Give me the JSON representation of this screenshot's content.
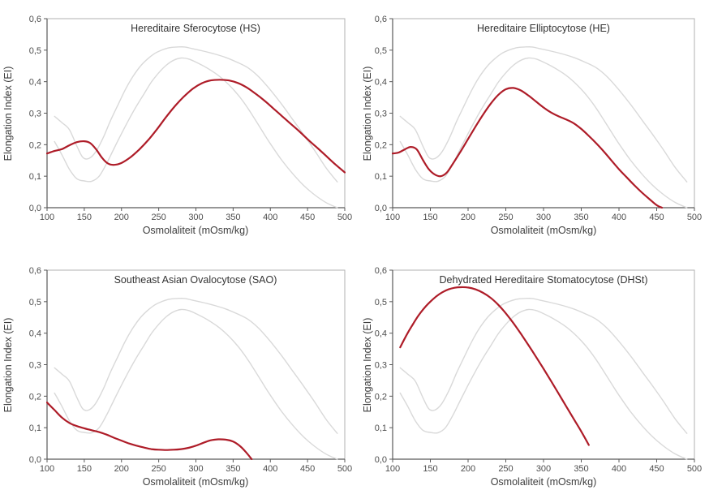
{
  "chart_data": {
    "type": "line",
    "layout": "2x2 grid of panels, shared axes style, no legend, no gridlines",
    "xlabel": "Osmolaliteit (mOsm/kg)",
    "ylabel": "Elongation Index (EI)",
    "xlim": [
      100,
      500
    ],
    "ylim": [
      0.0,
      0.6
    ],
    "xticks": [
      100,
      150,
      200,
      250,
      300,
      350,
      400,
      450,
      500
    ],
    "yticks": [
      0.0,
      0.1,
      0.2,
      0.3,
      0.4,
      0.5,
      0.6
    ],
    "ytick_labels": [
      "0,0",
      "0,1",
      "0,2",
      "0,3",
      "0,4",
      "0,5",
      "0,6"
    ],
    "decimal_separator": ",",
    "grid": false,
    "legend": false,
    "colors": {
      "patient_curve": "#ae1c28",
      "reference_curve": "#d9d9d9",
      "axis": "#595959",
      "border": "#b0b0b0",
      "tick_text": "#4d4d4d",
      "title_text": "#333333"
    },
    "reference_series": [
      {
        "name": "normal-range-upper",
        "x": [
          110,
          120,
          130,
          140,
          148,
          156,
          165,
          175,
          185,
          195,
          205,
          215,
          225,
          235,
          245,
          255,
          265,
          275,
          285,
          295,
          310,
          325,
          340,
          355,
          370,
          385,
          400,
          415,
          430,
          445,
          460,
          475,
          490
        ],
        "y": [
          0.29,
          0.27,
          0.248,
          0.196,
          0.16,
          0.156,
          0.176,
          0.22,
          0.275,
          0.325,
          0.374,
          0.415,
          0.448,
          0.472,
          0.49,
          0.501,
          0.508,
          0.51,
          0.51,
          0.505,
          0.497,
          0.488,
          0.477,
          0.462,
          0.444,
          0.414,
          0.374,
          0.329,
          0.28,
          0.231,
          0.18,
          0.126,
          0.082
        ]
      },
      {
        "name": "normal-range-lower",
        "x": [
          110,
          120,
          130,
          140,
          150,
          160,
          170,
          180,
          190,
          200,
          210,
          220,
          230,
          240,
          250,
          260,
          270,
          280,
          290,
          300,
          310,
          320,
          330,
          340,
          350,
          360,
          370,
          380,
          390,
          400,
          415,
          430,
          445,
          460,
          475,
          490
        ],
        "y": [
          0.21,
          0.168,
          0.122,
          0.092,
          0.085,
          0.084,
          0.1,
          0.14,
          0.188,
          0.235,
          0.28,
          0.322,
          0.36,
          0.398,
          0.428,
          0.452,
          0.468,
          0.475,
          0.472,
          0.462,
          0.45,
          0.436,
          0.42,
          0.4,
          0.376,
          0.348,
          0.315,
          0.278,
          0.24,
          0.203,
          0.152,
          0.108,
          0.07,
          0.04,
          0.016,
          0.0
        ]
      }
    ],
    "panels": [
      {
        "title": "Hereditaire Sferocytose (HS)",
        "patient_series": {
          "name": "patient-curve-hs",
          "x": [
            100,
            110,
            120,
            130,
            140,
            150,
            158,
            166,
            174,
            182,
            190,
            200,
            212,
            224,
            236,
            248,
            260,
            272,
            284,
            296,
            308,
            320,
            332,
            344,
            356,
            368,
            380,
            392,
            404,
            416,
            428,
            440,
            452,
            464,
            476,
            488,
            500
          ],
          "y": [
            0.172,
            0.18,
            0.186,
            0.198,
            0.208,
            0.211,
            0.205,
            0.185,
            0.158,
            0.14,
            0.136,
            0.142,
            0.16,
            0.185,
            0.215,
            0.25,
            0.288,
            0.323,
            0.353,
            0.378,
            0.395,
            0.404,
            0.406,
            0.404,
            0.396,
            0.382,
            0.362,
            0.34,
            0.315,
            0.29,
            0.265,
            0.24,
            0.213,
            0.188,
            0.162,
            0.136,
            0.112
          ]
        }
      },
      {
        "title": "Hereditaire Elliptocytose (HE)",
        "patient_series": {
          "name": "patient-curve-he",
          "x": [
            100,
            108,
            116,
            124,
            132,
            140,
            148,
            156,
            164,
            172,
            180,
            190,
            200,
            210,
            220,
            230,
            240,
            250,
            260,
            270,
            280,
            290,
            300,
            310,
            320,
            330,
            340,
            350,
            360,
            370,
            380,
            390,
            400,
            410,
            420,
            430,
            440,
            450,
            457
          ],
          "y": [
            0.172,
            0.175,
            0.185,
            0.193,
            0.185,
            0.152,
            0.122,
            0.105,
            0.1,
            0.112,
            0.14,
            0.178,
            0.218,
            0.258,
            0.296,
            0.33,
            0.358,
            0.376,
            0.38,
            0.372,
            0.356,
            0.337,
            0.318,
            0.302,
            0.29,
            0.28,
            0.268,
            0.25,
            0.228,
            0.204,
            0.178,
            0.15,
            0.122,
            0.097,
            0.072,
            0.049,
            0.028,
            0.008,
            0.0
          ]
        }
      },
      {
        "title": "Southeast Asian Ovalocytose (SAO)",
        "patient_series": {
          "name": "patient-curve-sao",
          "x": [
            100,
            110,
            120,
            130,
            140,
            150,
            160,
            170,
            180,
            190,
            200,
            210,
            220,
            230,
            240,
            250,
            260,
            270,
            280,
            290,
            300,
            310,
            320,
            330,
            340,
            350,
            360,
            368,
            375
          ],
          "y": [
            0.18,
            0.156,
            0.132,
            0.115,
            0.105,
            0.098,
            0.092,
            0.086,
            0.078,
            0.068,
            0.059,
            0.05,
            0.043,
            0.037,
            0.032,
            0.03,
            0.029,
            0.03,
            0.032,
            0.036,
            0.043,
            0.052,
            0.06,
            0.063,
            0.062,
            0.056,
            0.04,
            0.02,
            0.0
          ]
        }
      },
      {
        "title": "Dehydrated Hereditaire Stomatocytose (DHSt)",
        "patient_series": {
          "name": "patient-curve-dhst",
          "x": [
            110,
            118,
            126,
            134,
            142,
            150,
            158,
            166,
            174,
            182,
            190,
            200,
            210,
            220,
            230,
            240,
            250,
            260,
            270,
            280,
            290,
            300,
            310,
            320,
            330,
            340,
            350,
            360
          ],
          "y": [
            0.355,
            0.392,
            0.425,
            0.455,
            0.48,
            0.5,
            0.517,
            0.53,
            0.539,
            0.544,
            0.546,
            0.545,
            0.539,
            0.528,
            0.512,
            0.49,
            0.463,
            0.432,
            0.398,
            0.362,
            0.325,
            0.287,
            0.248,
            0.208,
            0.168,
            0.128,
            0.088,
            0.045
          ]
        }
      }
    ]
  }
}
